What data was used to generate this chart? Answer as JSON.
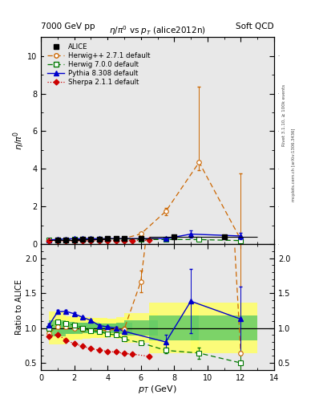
{
  "alice_x": [
    1.0,
    1.5,
    2.0,
    2.5,
    3.0,
    3.5,
    4.0,
    4.5,
    5.0,
    6.0,
    8.0,
    11.0
  ],
  "alice_y": [
    0.215,
    0.23,
    0.245,
    0.26,
    0.275,
    0.285,
    0.295,
    0.3,
    0.315,
    0.33,
    0.39,
    0.39
  ],
  "alice_yerr": [
    0.025,
    0.02,
    0.02,
    0.02,
    0.02,
    0.02,
    0.02,
    0.02,
    0.025,
    0.035,
    0.07,
    0.07
  ],
  "alice_xerr": [
    0.5,
    0.5,
    0.5,
    0.5,
    0.5,
    0.5,
    0.5,
    0.5,
    0.5,
    1.0,
    1.5,
    2.0
  ],
  "herwig_x": [
    0.5,
    1.0,
    1.5,
    2.0,
    2.5,
    3.0,
    3.5,
    4.0,
    4.5,
    5.0,
    6.0,
    7.5,
    9.5,
    12.0
  ],
  "herwig_y": [
    0.2,
    0.22,
    0.235,
    0.245,
    0.255,
    0.265,
    0.275,
    0.285,
    0.295,
    0.31,
    0.55,
    1.75,
    4.35,
    0.25
  ],
  "herwig_yerr_lo": [
    0.005,
    0.005,
    0.005,
    0.005,
    0.005,
    0.005,
    0.005,
    0.005,
    0.005,
    0.01,
    0.05,
    0.2,
    0.4,
    3.5
  ],
  "herwig_yerr_hi": [
    0.005,
    0.005,
    0.005,
    0.005,
    0.005,
    0.005,
    0.005,
    0.005,
    0.005,
    0.01,
    0.05,
    0.2,
    4.0,
    3.5
  ],
  "herwig7_x": [
    0.5,
    1.0,
    1.5,
    2.0,
    2.5,
    3.0,
    3.5,
    4.0,
    4.5,
    5.0,
    6.0,
    7.5,
    9.5,
    12.0
  ],
  "herwig7_y": [
    0.215,
    0.235,
    0.245,
    0.255,
    0.26,
    0.265,
    0.27,
    0.27,
    0.27,
    0.265,
    0.26,
    0.255,
    0.25,
    0.195
  ],
  "herwig7_yerr": [
    0.004,
    0.004,
    0.004,
    0.004,
    0.004,
    0.004,
    0.004,
    0.004,
    0.004,
    0.006,
    0.008,
    0.015,
    0.03,
    0.045
  ],
  "pythia_x": [
    0.5,
    1.0,
    1.5,
    2.0,
    2.5,
    3.0,
    3.5,
    4.0,
    4.5,
    5.0,
    7.5,
    9.0,
    12.0
  ],
  "pythia_y": [
    0.225,
    0.265,
    0.285,
    0.295,
    0.3,
    0.305,
    0.295,
    0.3,
    0.3,
    0.3,
    0.3,
    0.54,
    0.44
  ],
  "pythia_yerr_lo": [
    0.005,
    0.005,
    0.005,
    0.005,
    0.005,
    0.005,
    0.005,
    0.005,
    0.005,
    0.01,
    0.04,
    0.18,
    0.18
  ],
  "pythia_yerr_hi": [
    0.005,
    0.005,
    0.005,
    0.005,
    0.005,
    0.005,
    0.005,
    0.005,
    0.005,
    0.01,
    0.04,
    0.18,
    0.18
  ],
  "sherpa_x": [
    0.5,
    1.0,
    1.5,
    2.0,
    2.5,
    3.0,
    3.5,
    4.0,
    4.5,
    5.0,
    5.5,
    6.5
  ],
  "sherpa_y": [
    0.19,
    0.195,
    0.19,
    0.19,
    0.192,
    0.194,
    0.195,
    0.196,
    0.197,
    0.2,
    0.202,
    0.205
  ],
  "sherpa_yerr": [
    0.003,
    0.003,
    0.003,
    0.003,
    0.003,
    0.003,
    0.003,
    0.003,
    0.003,
    0.005,
    0.005,
    0.008
  ],
  "alice_color": "#000000",
  "herwig_color": "#cc6600",
  "herwig7_color": "#007700",
  "pythia_color": "#0000cc",
  "sherpa_color": "#cc0000",
  "xlim": [
    0,
    14
  ],
  "ylim_main": [
    0,
    11
  ],
  "ylim_ratio": [
    0.4,
    2.2
  ],
  "yticks_main": [
    0,
    2,
    4,
    6,
    8,
    10
  ],
  "yticks_ratio": [
    0.5,
    1.0,
    1.5,
    2.0
  ],
  "xticks": [
    0,
    2,
    4,
    6,
    8,
    10,
    12,
    14
  ]
}
